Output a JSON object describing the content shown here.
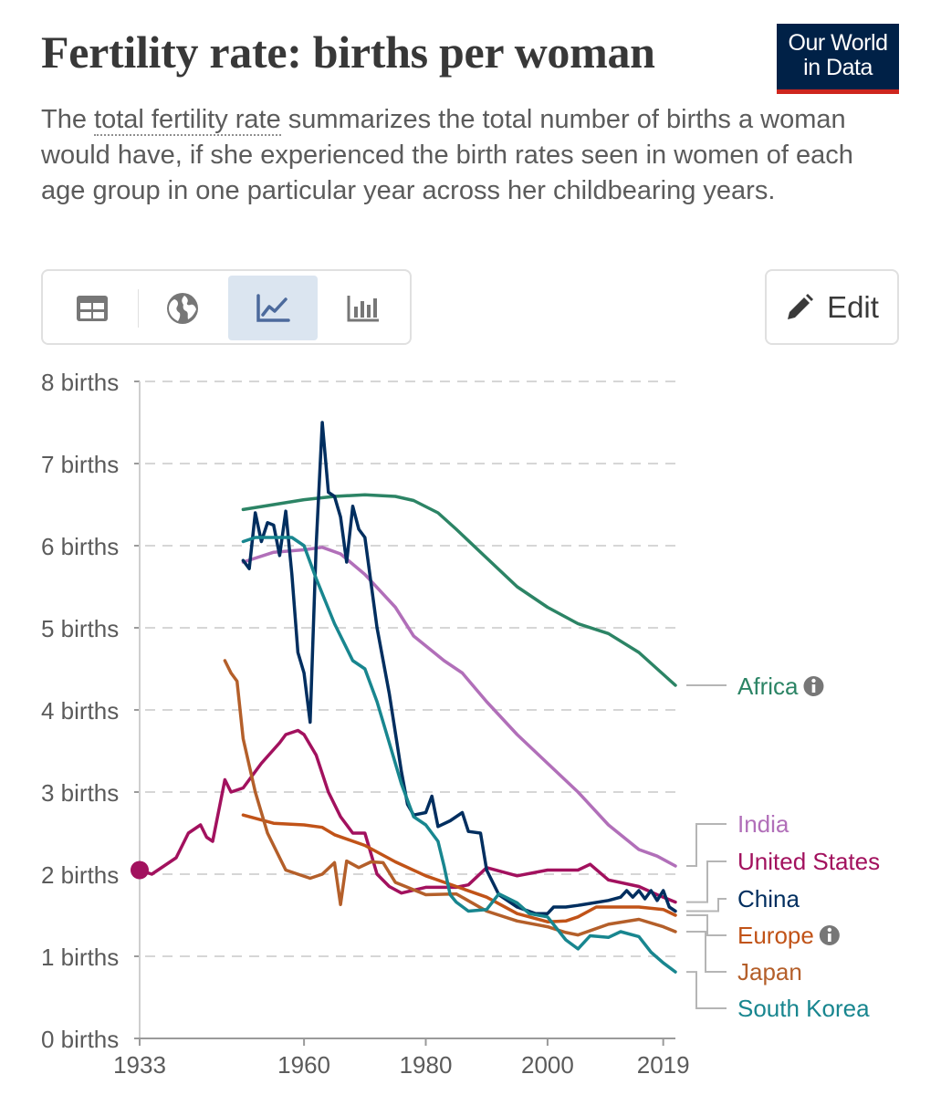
{
  "header": {
    "title": "Fertility rate: births per woman",
    "subtitle_link": "total fertility rate",
    "subtitle_before": "The ",
    "subtitle_after": " summarizes the total number of births a woman would have, if she experienced the birth rates seen in women of each age group in one particular year across her childbearing years.",
    "logo_line1": "Our World",
    "logo_line2": "in Data",
    "logo_color": "#002147",
    "logo_accent": "#ce261e"
  },
  "toolbar": {
    "tabs": [
      {
        "name": "table",
        "icon": "table-icon",
        "active": false
      },
      {
        "name": "map",
        "icon": "globe-icon",
        "active": false
      },
      {
        "name": "line-chart",
        "icon": "line-chart-icon",
        "active": true
      },
      {
        "name": "bar-chart",
        "icon": "bar-chart-icon",
        "active": false
      }
    ],
    "edit_label": "Edit",
    "edit_icon": "pencil-icon"
  },
  "chart_data": {
    "type": "line",
    "title": "Fertility rate: births per woman",
    "ylim": [
      0,
      8
    ],
    "xlim": [
      1933,
      2021
    ],
    "y_ticks": [
      0,
      1,
      2,
      3,
      4,
      5,
      6,
      7,
      8
    ],
    "y_tick_suffix": " births",
    "x_ticks": [
      {
        "value": 1933,
        "label": "1933"
      },
      {
        "value": 1960,
        "label": "1960"
      },
      {
        "value": 1980,
        "label": "1980"
      },
      {
        "value": 2000,
        "label": "2000"
      },
      {
        "value": 2019,
        "label": "2019"
      }
    ],
    "grid": "horizontal dashed",
    "legend": "right, labels at line ends",
    "series": [
      {
        "name": "Africa",
        "color": "#2c8465",
        "info_icon": true,
        "points": [
          [
            1950,
            6.44
          ],
          [
            1955,
            6.5
          ],
          [
            1960,
            6.56
          ],
          [
            1965,
            6.6
          ],
          [
            1970,
            6.62
          ],
          [
            1975,
            6.6
          ],
          [
            1978,
            6.55
          ],
          [
            1982,
            6.4
          ],
          [
            1985,
            6.2
          ],
          [
            1990,
            5.85
          ],
          [
            1995,
            5.5
          ],
          [
            2000,
            5.25
          ],
          [
            2005,
            5.05
          ],
          [
            2010,
            4.93
          ],
          [
            2015,
            4.7
          ],
          [
            2021,
            4.3
          ]
        ]
      },
      {
        "name": "India",
        "color": "#b16fb9",
        "info_icon": false,
        "points": [
          [
            1950,
            5.8
          ],
          [
            1955,
            5.92
          ],
          [
            1960,
            5.95
          ],
          [
            1963,
            5.98
          ],
          [
            1966,
            5.9
          ],
          [
            1970,
            5.65
          ],
          [
            1975,
            5.25
          ],
          [
            1978,
            4.9
          ],
          [
            1983,
            4.6
          ],
          [
            1986,
            4.45
          ],
          [
            1990,
            4.1
          ],
          [
            1995,
            3.7
          ],
          [
            2000,
            3.35
          ],
          [
            2005,
            3.0
          ],
          [
            2010,
            2.6
          ],
          [
            2015,
            2.3
          ],
          [
            2018,
            2.22
          ],
          [
            2021,
            2.1
          ]
        ]
      },
      {
        "name": "United States",
        "color": "#a2115e",
        "info_icon": false,
        "points": [
          [
            1933,
            2.05
          ],
          [
            1935,
            2.0
          ],
          [
            1937,
            2.1
          ],
          [
            1939,
            2.2
          ],
          [
            1941,
            2.5
          ],
          [
            1943,
            2.6
          ],
          [
            1944,
            2.45
          ],
          [
            1945,
            2.4
          ],
          [
            1947,
            3.15
          ],
          [
            1948,
            3.0
          ],
          [
            1950,
            3.05
          ],
          [
            1953,
            3.35
          ],
          [
            1956,
            3.6
          ],
          [
            1957,
            3.7
          ],
          [
            1959,
            3.75
          ],
          [
            1960,
            3.7
          ],
          [
            1962,
            3.45
          ],
          [
            1964,
            3.0
          ],
          [
            1966,
            2.7
          ],
          [
            1968,
            2.5
          ],
          [
            1970,
            2.5
          ],
          [
            1972,
            2.0
          ],
          [
            1974,
            1.85
          ],
          [
            1976,
            1.77
          ],
          [
            1980,
            1.84
          ],
          [
            1985,
            1.84
          ],
          [
            1987,
            1.87
          ],
          [
            1990,
            2.08
          ],
          [
            1995,
            1.98
          ],
          [
            2000,
            2.05
          ],
          [
            2005,
            2.05
          ],
          [
            2007,
            2.12
          ],
          [
            2010,
            1.93
          ],
          [
            2015,
            1.85
          ],
          [
            2018,
            1.75
          ],
          [
            2021,
            1.66
          ]
        ]
      },
      {
        "name": "China",
        "color": "#002e5f",
        "info_icon": false,
        "points": [
          [
            1950,
            5.82
          ],
          [
            1951,
            5.72
          ],
          [
            1952,
            6.4
          ],
          [
            1953,
            6.05
          ],
          [
            1954,
            6.28
          ],
          [
            1955,
            6.25
          ],
          [
            1956,
            5.88
          ],
          [
            1957,
            6.42
          ],
          [
            1958,
            5.65
          ],
          [
            1959,
            4.7
          ],
          [
            1960,
            4.45
          ],
          [
            1961,
            3.85
          ],
          [
            1962,
            6.0
          ],
          [
            1963,
            7.5
          ],
          [
            1964,
            6.65
          ],
          [
            1965,
            6.6
          ],
          [
            1966,
            6.35
          ],
          [
            1967,
            5.8
          ],
          [
            1968,
            6.48
          ],
          [
            1969,
            6.2
          ],
          [
            1970,
            6.1
          ],
          [
            1972,
            5.0
          ],
          [
            1974,
            4.2
          ],
          [
            1976,
            3.25
          ],
          [
            1977,
            2.85
          ],
          [
            1978,
            2.72
          ],
          [
            1980,
            2.75
          ],
          [
            1981,
            2.95
          ],
          [
            1982,
            2.58
          ],
          [
            1984,
            2.65
          ],
          [
            1986,
            2.75
          ],
          [
            1987,
            2.52
          ],
          [
            1989,
            2.5
          ],
          [
            1990,
            2.05
          ],
          [
            1992,
            1.75
          ],
          [
            1995,
            1.6
          ],
          [
            1998,
            1.52
          ],
          [
            2000,
            1.52
          ],
          [
            2001,
            1.6
          ],
          [
            2003,
            1.6
          ],
          [
            2005,
            1.62
          ],
          [
            2010,
            1.68
          ],
          [
            2012,
            1.72
          ],
          [
            2013,
            1.8
          ],
          [
            2014,
            1.72
          ],
          [
            2015,
            1.8
          ],
          [
            2016,
            1.7
          ],
          [
            2017,
            1.8
          ],
          [
            2018,
            1.68
          ],
          [
            2019,
            1.8
          ],
          [
            2020,
            1.6
          ],
          [
            2021,
            1.55
          ]
        ]
      },
      {
        "name": "Europe",
        "info_icon": true,
        "color": "#c15318",
        "points": [
          [
            1950,
            2.72
          ],
          [
            1955,
            2.62
          ],
          [
            1960,
            2.6
          ],
          [
            1963,
            2.57
          ],
          [
            1965,
            2.48
          ],
          [
            1970,
            2.35
          ],
          [
            1975,
            2.15
          ],
          [
            1980,
            1.98
          ],
          [
            1985,
            1.85
          ],
          [
            1990,
            1.72
          ],
          [
            1995,
            1.52
          ],
          [
            2000,
            1.42
          ],
          [
            2003,
            1.43
          ],
          [
            2005,
            1.48
          ],
          [
            2008,
            1.6
          ],
          [
            2010,
            1.6
          ],
          [
            2015,
            1.6
          ],
          [
            2019,
            1.57
          ],
          [
            2021,
            1.5
          ]
        ]
      },
      {
        "name": "Japan",
        "color": "#b45f2a",
        "info_icon": false,
        "points": [
          [
            1947,
            4.6
          ],
          [
            1948,
            4.45
          ],
          [
            1949,
            4.35
          ],
          [
            1950,
            3.65
          ],
          [
            1952,
            3.0
          ],
          [
            1954,
            2.5
          ],
          [
            1956,
            2.2
          ],
          [
            1957,
            2.05
          ],
          [
            1959,
            2.0
          ],
          [
            1961,
            1.95
          ],
          [
            1963,
            2.0
          ],
          [
            1965,
            2.14
          ],
          [
            1966,
            1.63
          ],
          [
            1967,
            2.16
          ],
          [
            1969,
            2.08
          ],
          [
            1971,
            2.15
          ],
          [
            1973,
            2.14
          ],
          [
            1975,
            1.9
          ],
          [
            1980,
            1.75
          ],
          [
            1985,
            1.76
          ],
          [
            1990,
            1.55
          ],
          [
            1995,
            1.43
          ],
          [
            2000,
            1.36
          ],
          [
            2003,
            1.29
          ],
          [
            2005,
            1.26
          ],
          [
            2010,
            1.39
          ],
          [
            2015,
            1.45
          ],
          [
            2019,
            1.36
          ],
          [
            2021,
            1.3
          ]
        ]
      },
      {
        "name": "South Korea",
        "color": "#18868f",
        "info_icon": false,
        "points": [
          [
            1950,
            6.05
          ],
          [
            1952,
            6.1
          ],
          [
            1955,
            6.1
          ],
          [
            1958,
            6.1
          ],
          [
            1960,
            6.0
          ],
          [
            1962,
            5.6
          ],
          [
            1965,
            5.05
          ],
          [
            1968,
            4.6
          ],
          [
            1970,
            4.5
          ],
          [
            1972,
            4.1
          ],
          [
            1974,
            3.6
          ],
          [
            1976,
            3.1
          ],
          [
            1978,
            2.7
          ],
          [
            1980,
            2.6
          ],
          [
            1982,
            2.4
          ],
          [
            1983,
            2.1
          ],
          [
            1984,
            1.75
          ],
          [
            1985,
            1.66
          ],
          [
            1987,
            1.55
          ],
          [
            1990,
            1.57
          ],
          [
            1992,
            1.76
          ],
          [
            1995,
            1.65
          ],
          [
            1997,
            1.52
          ],
          [
            2000,
            1.48
          ],
          [
            2003,
            1.2
          ],
          [
            2005,
            1.09
          ],
          [
            2007,
            1.25
          ],
          [
            2010,
            1.23
          ],
          [
            2012,
            1.3
          ],
          [
            2015,
            1.24
          ],
          [
            2017,
            1.05
          ],
          [
            2019,
            0.92
          ],
          [
            2021,
            0.81
          ]
        ]
      }
    ],
    "start_marker": {
      "series": "United States",
      "x": 1933,
      "y": 2.05
    }
  }
}
